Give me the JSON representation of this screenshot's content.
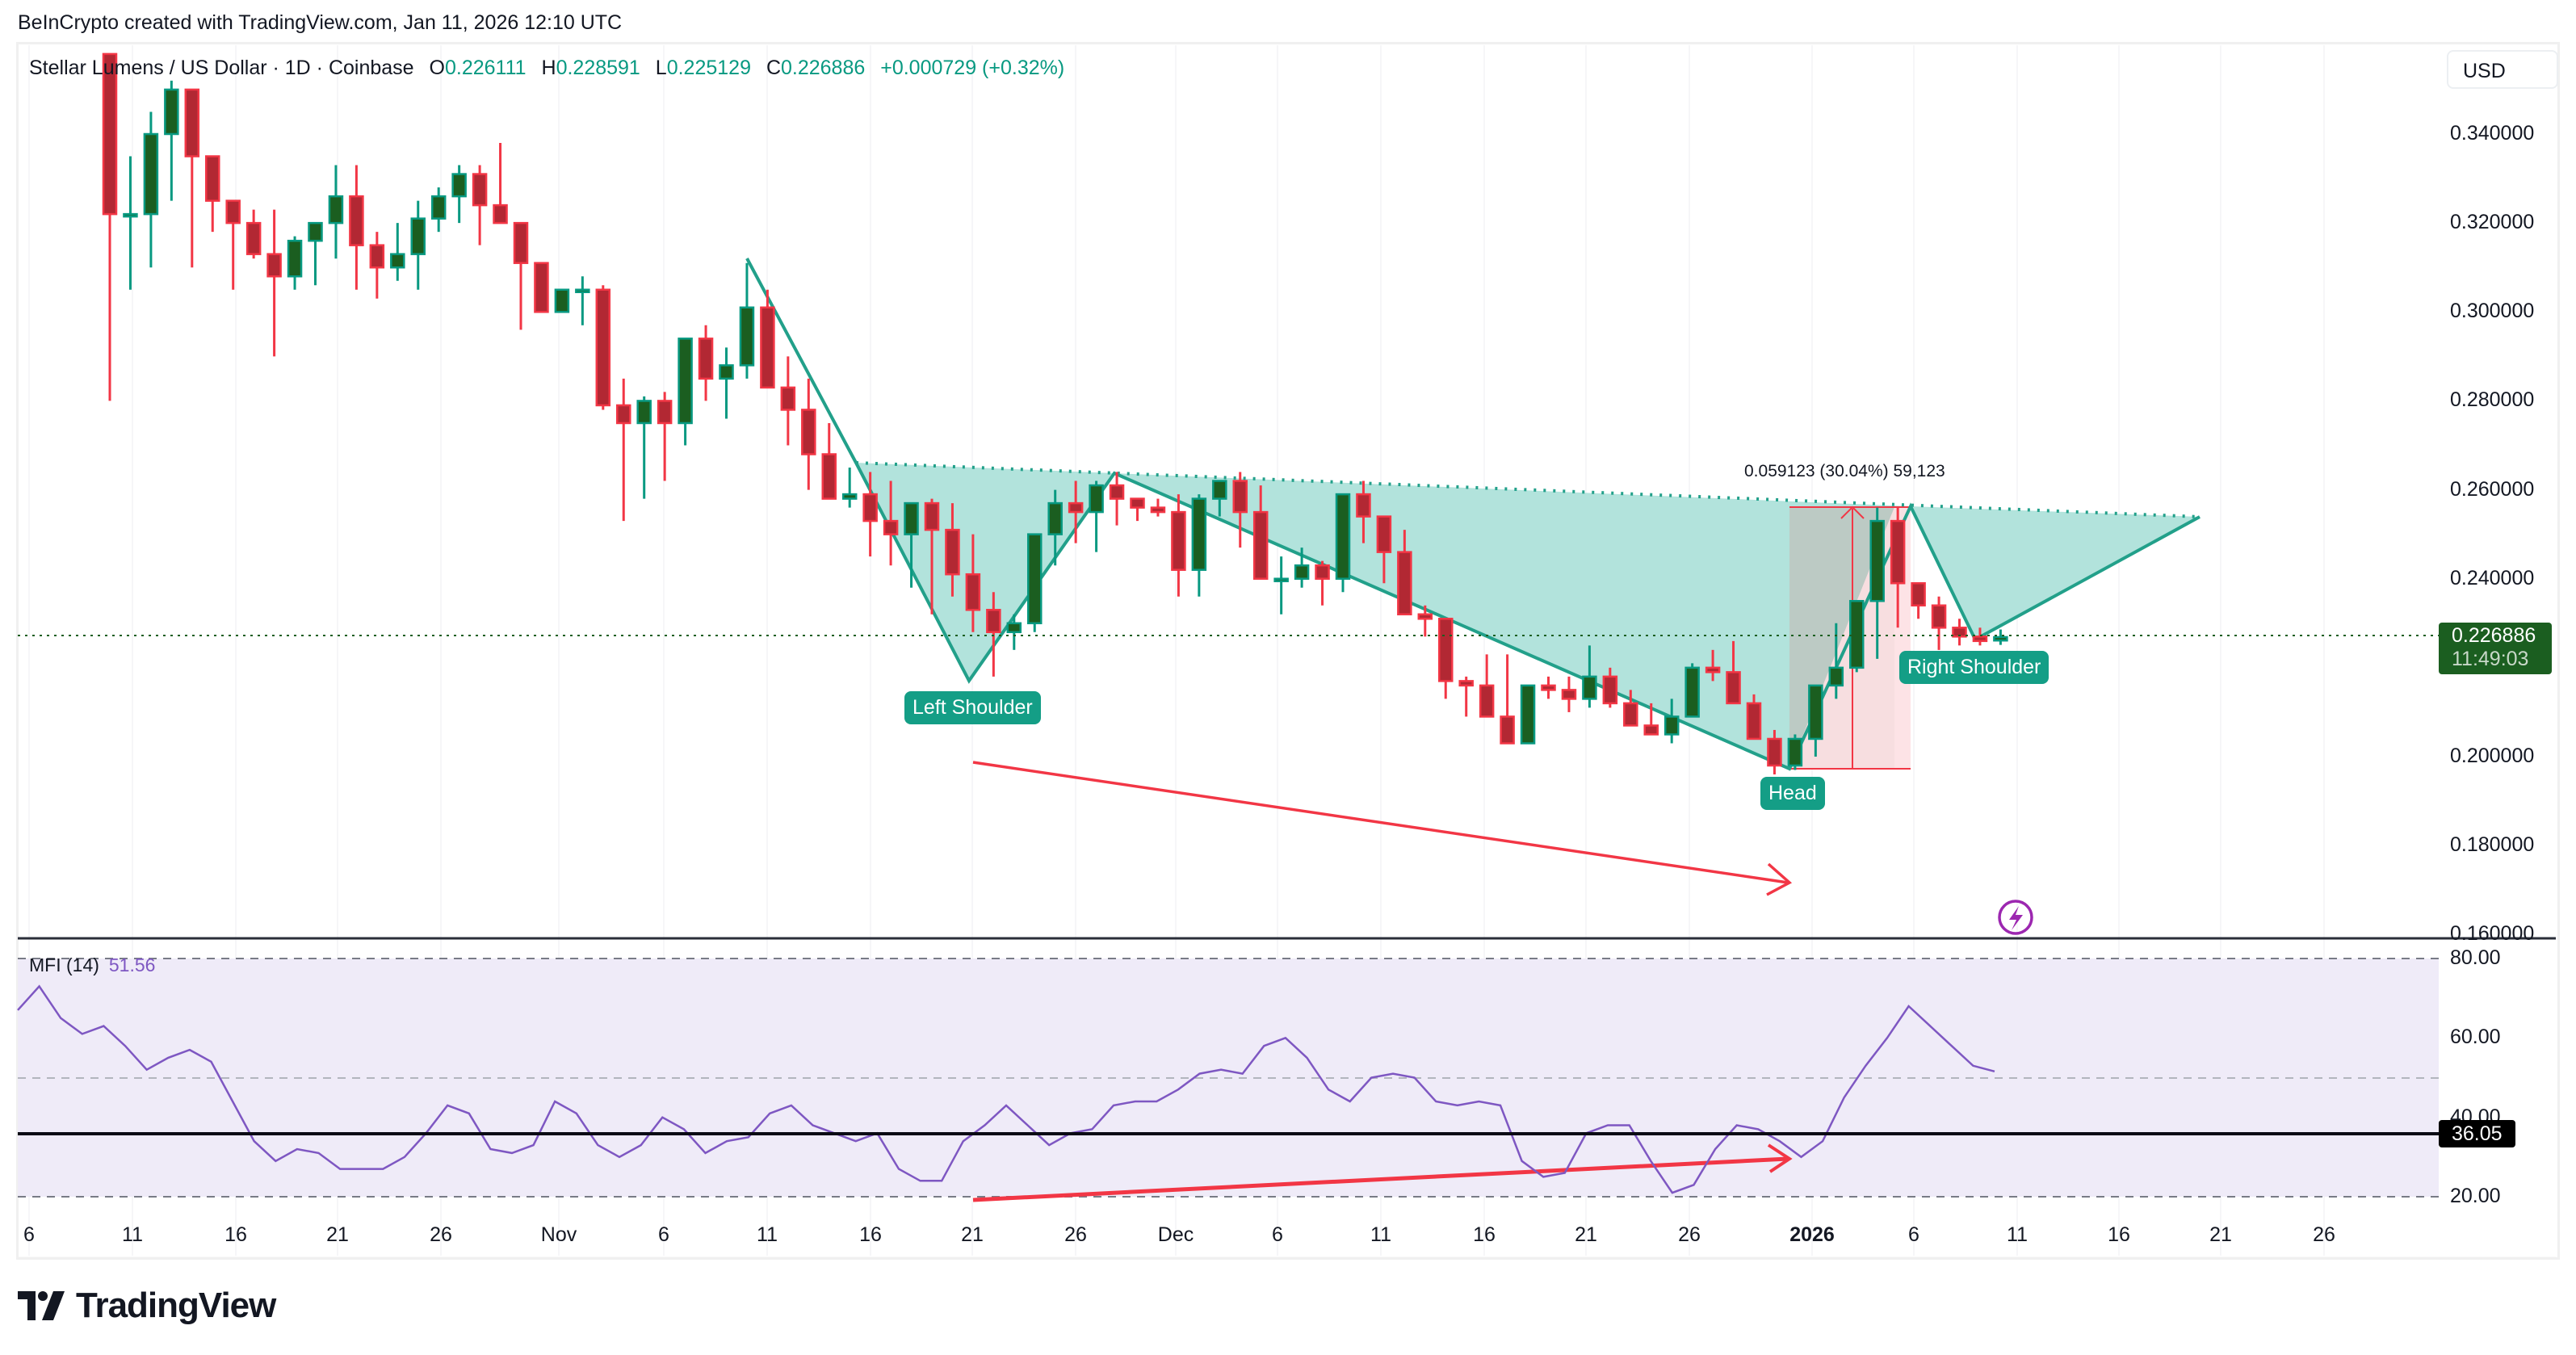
{
  "header": {
    "credit": "BeInCrypto created with TradingView.com, Jan 11, 2026 12:10 UTC"
  },
  "symbol": {
    "title": "Stellar Lumens / US Dollar · 1D · Coinbase",
    "open_label": "O",
    "open": "0.226111",
    "high_label": "H",
    "high": "0.228591",
    "low_label": "L",
    "low": "0.225129",
    "close_label": "C",
    "close": "0.226886",
    "change": "+0.000729 (+0.32%)"
  },
  "currency_button": "USD",
  "price_axis": [
    "0.340000",
    "0.320000",
    "0.300000",
    "0.280000",
    "0.260000",
    "0.240000",
    "0.200000",
    "0.180000",
    "0.160000"
  ],
  "current_price": {
    "value": "0.226886",
    "countdown": "11:49:03"
  },
  "mfi": {
    "label": "MFI (14)",
    "value": "51.56",
    "axis": [
      "80.00",
      "60.00",
      "40.00",
      "20.00"
    ],
    "level_value": "36.05"
  },
  "time_axis": [
    "6",
    "11",
    "16",
    "21",
    "26",
    "Nov",
    "6",
    "11",
    "16",
    "21",
    "26",
    "Dec",
    "6",
    "11",
    "16",
    "21",
    "26",
    "2026",
    "6",
    "11",
    "16",
    "21",
    "26"
  ],
  "annotations": {
    "left_shoulder": "Left Shoulder",
    "head": "Head",
    "right_shoulder": "Right Shoulder",
    "measure": "0.059123 (30.04%) 59,123"
  },
  "logo": "TradingView",
  "colors": {
    "up": "#1b5e20",
    "up_border": "#089981",
    "down": "#b22833",
    "down_border": "#f23645",
    "pattern_fill": "#b2e3dc",
    "pattern_line": "#22a08a",
    "mfi_line": "#7e57c2",
    "mfi_bg": "#efebf8",
    "arrow": "#f23645"
  },
  "chart_data": {
    "type": "candlestick",
    "title": "Stellar Lumens / US Dollar · 1D · Coinbase",
    "ylabel": "USD",
    "ylim": [
      0.16,
      0.345
    ],
    "x_ticks": [
      "Oct 6",
      "Oct 11",
      "Oct 16",
      "Oct 21",
      "Oct 26",
      "Nov",
      "Nov 6",
      "Nov 11",
      "Nov 16",
      "Nov 21",
      "Nov 26",
      "Dec",
      "Dec 6",
      "Dec 11",
      "Dec 16",
      "Dec 21",
      "Dec 26",
      "2026",
      "Jan 6",
      "Jan 11"
    ],
    "candles": [
      [
        0.358,
        0.358,
        0.28,
        0.322
      ],
      [
        0.322,
        0.335,
        0.305,
        0.322
      ],
      [
        0.322,
        0.345,
        0.31,
        0.34
      ],
      [
        0.34,
        0.352,
        0.325,
        0.35
      ],
      [
        0.35,
        0.35,
        0.31,
        0.335
      ],
      [
        0.335,
        0.33,
        0.318,
        0.325
      ],
      [
        0.325,
        0.32,
        0.305,
        0.32
      ],
      [
        0.32,
        0.323,
        0.312,
        0.313
      ],
      [
        0.313,
        0.323,
        0.29,
        0.308
      ],
      [
        0.308,
        0.317,
        0.305,
        0.316
      ],
      [
        0.316,
        0.32,
        0.306,
        0.32
      ],
      [
        0.32,
        0.333,
        0.312,
        0.326
      ],
      [
        0.326,
        0.333,
        0.305,
        0.315
      ],
      [
        0.315,
        0.318,
        0.303,
        0.31
      ],
      [
        0.31,
        0.32,
        0.307,
        0.313
      ],
      [
        0.313,
        0.325,
        0.305,
        0.321
      ],
      [
        0.321,
        0.328,
        0.318,
        0.326
      ],
      [
        0.326,
        0.333,
        0.32,
        0.331
      ],
      [
        0.331,
        0.333,
        0.315,
        0.324
      ],
      [
        0.324,
        0.338,
        0.32,
        0.32
      ],
      [
        0.32,
        0.318,
        0.296,
        0.311
      ],
      [
        0.311,
        0.31,
        0.3,
        0.3
      ],
      [
        0.3,
        0.305,
        0.3,
        0.305
      ],
      [
        0.305,
        0.308,
        0.297,
        0.305
      ],
      [
        0.305,
        0.306,
        0.278,
        0.279
      ],
      [
        0.279,
        0.285,
        0.253,
        0.275
      ],
      [
        0.275,
        0.281,
        0.258,
        0.28
      ],
      [
        0.28,
        0.282,
        0.262,
        0.275
      ],
      [
        0.275,
        0.294,
        0.27,
        0.294
      ],
      [
        0.294,
        0.297,
        0.28,
        0.285
      ],
      [
        0.285,
        0.292,
        0.276,
        0.288
      ],
      [
        0.288,
        0.311,
        0.285,
        0.301
      ],
      [
        0.301,
        0.305,
        0.283,
        0.283
      ],
      [
        0.283,
        0.29,
        0.27,
        0.278
      ],
      [
        0.278,
        0.285,
        0.26,
        0.268
      ],
      [
        0.268,
        0.275,
        0.258,
        0.258
      ],
      [
        0.258,
        0.265,
        0.256,
        0.259
      ],
      [
        0.259,
        0.264,
        0.245,
        0.253
      ],
      [
        0.253,
        0.262,
        0.243,
        0.25
      ],
      [
        0.25,
        0.254,
        0.238,
        0.257
      ],
      [
        0.257,
        0.258,
        0.232,
        0.251
      ],
      [
        0.251,
        0.257,
        0.236,
        0.241
      ],
      [
        0.241,
        0.25,
        0.228,
        0.233
      ],
      [
        0.233,
        0.237,
        0.218,
        0.228
      ],
      [
        0.228,
        0.232,
        0.224,
        0.23
      ],
      [
        0.23,
        0.25,
        0.228,
        0.25
      ],
      [
        0.25,
        0.26,
        0.243,
        0.257
      ],
      [
        0.257,
        0.262,
        0.248,
        0.255
      ],
      [
        0.255,
        0.262,
        0.246,
        0.261
      ],
      [
        0.261,
        0.264,
        0.252,
        0.258
      ],
      [
        0.258,
        0.256,
        0.253,
        0.256
      ],
      [
        0.256,
        0.258,
        0.254,
        0.255
      ],
      [
        0.255,
        0.259,
        0.236,
        0.242
      ],
      [
        0.242,
        0.259,
        0.236,
        0.258
      ],
      [
        0.258,
        0.262,
        0.254,
        0.262
      ],
      [
        0.262,
        0.264,
        0.247,
        0.255
      ],
      [
        0.255,
        0.261,
        0.245,
        0.24
      ],
      [
        0.24,
        0.245,
        0.232,
        0.24
      ],
      [
        0.24,
        0.247,
        0.238,
        0.243
      ],
      [
        0.243,
        0.244,
        0.234,
        0.24
      ],
      [
        0.24,
        0.259,
        0.237,
        0.259
      ],
      [
        0.259,
        0.262,
        0.248,
        0.254
      ],
      [
        0.254,
        0.254,
        0.239,
        0.246
      ],
      [
        0.246,
        0.251,
        0.239,
        0.232
      ],
      [
        0.232,
        0.234,
        0.227,
        0.231
      ],
      [
        0.231,
        0.224,
        0.213,
        0.217
      ],
      [
        0.217,
        0.218,
        0.209,
        0.216
      ],
      [
        0.216,
        0.223,
        0.21,
        0.209
      ],
      [
        0.209,
        0.223,
        0.207,
        0.203
      ],
      [
        0.203,
        0.215,
        0.205,
        0.216
      ],
      [
        0.216,
        0.218,
        0.213,
        0.215
      ],
      [
        0.215,
        0.218,
        0.21,
        0.213
      ],
      [
        0.213,
        0.225,
        0.211,
        0.218
      ],
      [
        0.218,
        0.22,
        0.211,
        0.212
      ],
      [
        0.212,
        0.215,
        0.208,
        0.207
      ],
      [
        0.207,
        0.212,
        0.206,
        0.205
      ],
      [
        0.205,
        0.213,
        0.203,
        0.209
      ],
      [
        0.209,
        0.221,
        0.21,
        0.22
      ],
      [
        0.22,
        0.224,
        0.217,
        0.219
      ],
      [
        0.219,
        0.226,
        0.217,
        0.212
      ],
      [
        0.212,
        0.214,
        0.209,
        0.204
      ],
      [
        0.204,
        0.206,
        0.196,
        0.198
      ],
      [
        0.198,
        0.205,
        0.197,
        0.204
      ],
      [
        0.204,
        0.216,
        0.2,
        0.216
      ],
      [
        0.216,
        0.23,
        0.213,
        0.22
      ],
      [
        0.22,
        0.235,
        0.219,
        0.235
      ],
      [
        0.235,
        0.256,
        0.222,
        0.253
      ],
      [
        0.253,
        0.256,
        0.229,
        0.239
      ],
      [
        0.239,
        0.239,
        0.231,
        0.234
      ],
      [
        0.234,
        0.236,
        0.224,
        0.229
      ],
      [
        0.229,
        0.231,
        0.225,
        0.227
      ],
      [
        0.227,
        0.229,
        0.225,
        0.226
      ],
      [
        0.226111,
        0.228591,
        0.225129,
        0.226886
      ]
    ],
    "mfi_series": {
      "name": "MFI (14)",
      "ylim": [
        15,
        85
      ],
      "values": [
        67,
        73,
        65,
        61,
        63,
        58,
        52,
        55,
        57,
        54,
        44,
        34,
        29,
        32,
        31,
        27,
        27,
        27,
        30,
        36,
        43,
        41,
        32,
        31,
        33,
        44,
        41,
        33,
        30,
        33,
        40,
        37,
        31,
        34,
        35,
        41,
        43,
        38,
        36,
        34,
        36,
        27,
        24,
        24,
        34,
        38,
        43,
        38,
        33,
        36,
        37,
        43,
        44,
        44,
        47,
        51,
        52,
        51,
        58,
        60,
        55,
        47,
        44,
        50,
        51,
        50,
        44,
        43,
        44,
        43,
        29,
        25,
        26,
        36,
        38,
        38,
        29,
        21,
        23,
        32,
        38,
        37,
        34,
        30,
        34,
        45,
        53,
        60,
        68,
        63,
        58,
        53,
        51.56
      ]
    },
    "mfi_levels": {
      "upper": 80,
      "middle": 50,
      "lower": 20,
      "drawn_level": 36.05
    },
    "pattern": {
      "type": "inverse head and shoulders",
      "left_shoulder": 0.216,
      "head": 0.196,
      "right_shoulder": 0.224,
      "neckline_from": 0.265,
      "neckline_to": 0.253
    },
    "measure": {
      "value": 0.059123,
      "percent": 30.04,
      "ticks": 59123
    },
    "divergence": {
      "price": "lower lows",
      "mfi": "higher lows"
    }
  }
}
